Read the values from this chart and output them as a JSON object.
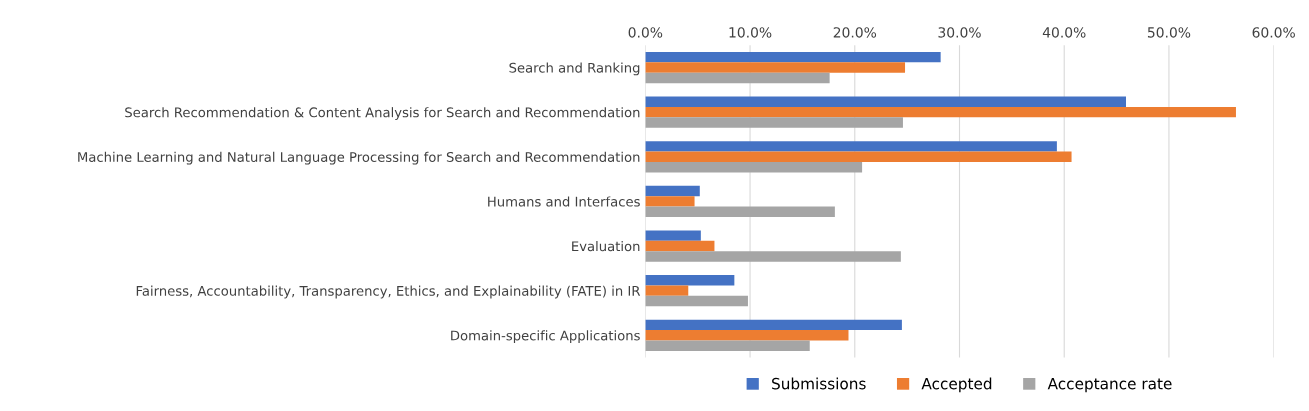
{
  "chart_data": {
    "type": "bar",
    "orientation": "horizontal",
    "categories": [
      "Search and Ranking",
      "Search Recommendation & Content Analysis for Search and Recommendation",
      "Machine Learning and Natural Language Processing for Search and Recommendation",
      "Humans and Interfaces",
      "Evaluation",
      "Fairness, Accountability, Transparency, Ethics, and Explainability (FATE) in IR",
      "Domain-specific Applications"
    ],
    "series": [
      {
        "name": "Submissions",
        "color": "#4472c4",
        "values": [
          28.2,
          45.9,
          39.3,
          5.2,
          5.3,
          8.5,
          24.5
        ]
      },
      {
        "name": "Accepted",
        "color": "#ed7d31",
        "values": [
          24.8,
          56.4,
          40.7,
          4.7,
          6.6,
          4.1,
          19.4
        ]
      },
      {
        "name": "Acceptance rate",
        "color": "#a5a5a5",
        "values": [
          17.6,
          24.6,
          20.7,
          18.1,
          24.4,
          9.8,
          15.7
        ]
      }
    ],
    "xlim": [
      0,
      60
    ],
    "xticks": [
      {
        "value": 0,
        "label": "0.0%"
      },
      {
        "value": 10,
        "label": "10.0%"
      },
      {
        "value": 20,
        "label": "20.0%"
      },
      {
        "value": 30,
        "label": "30.0%"
      },
      {
        "value": 40,
        "label": "40.0%"
      },
      {
        "value": 50,
        "label": "50.0%"
      },
      {
        "value": 60,
        "label": "60.0%"
      }
    ],
    "grid": "x",
    "legend": "bottom"
  }
}
